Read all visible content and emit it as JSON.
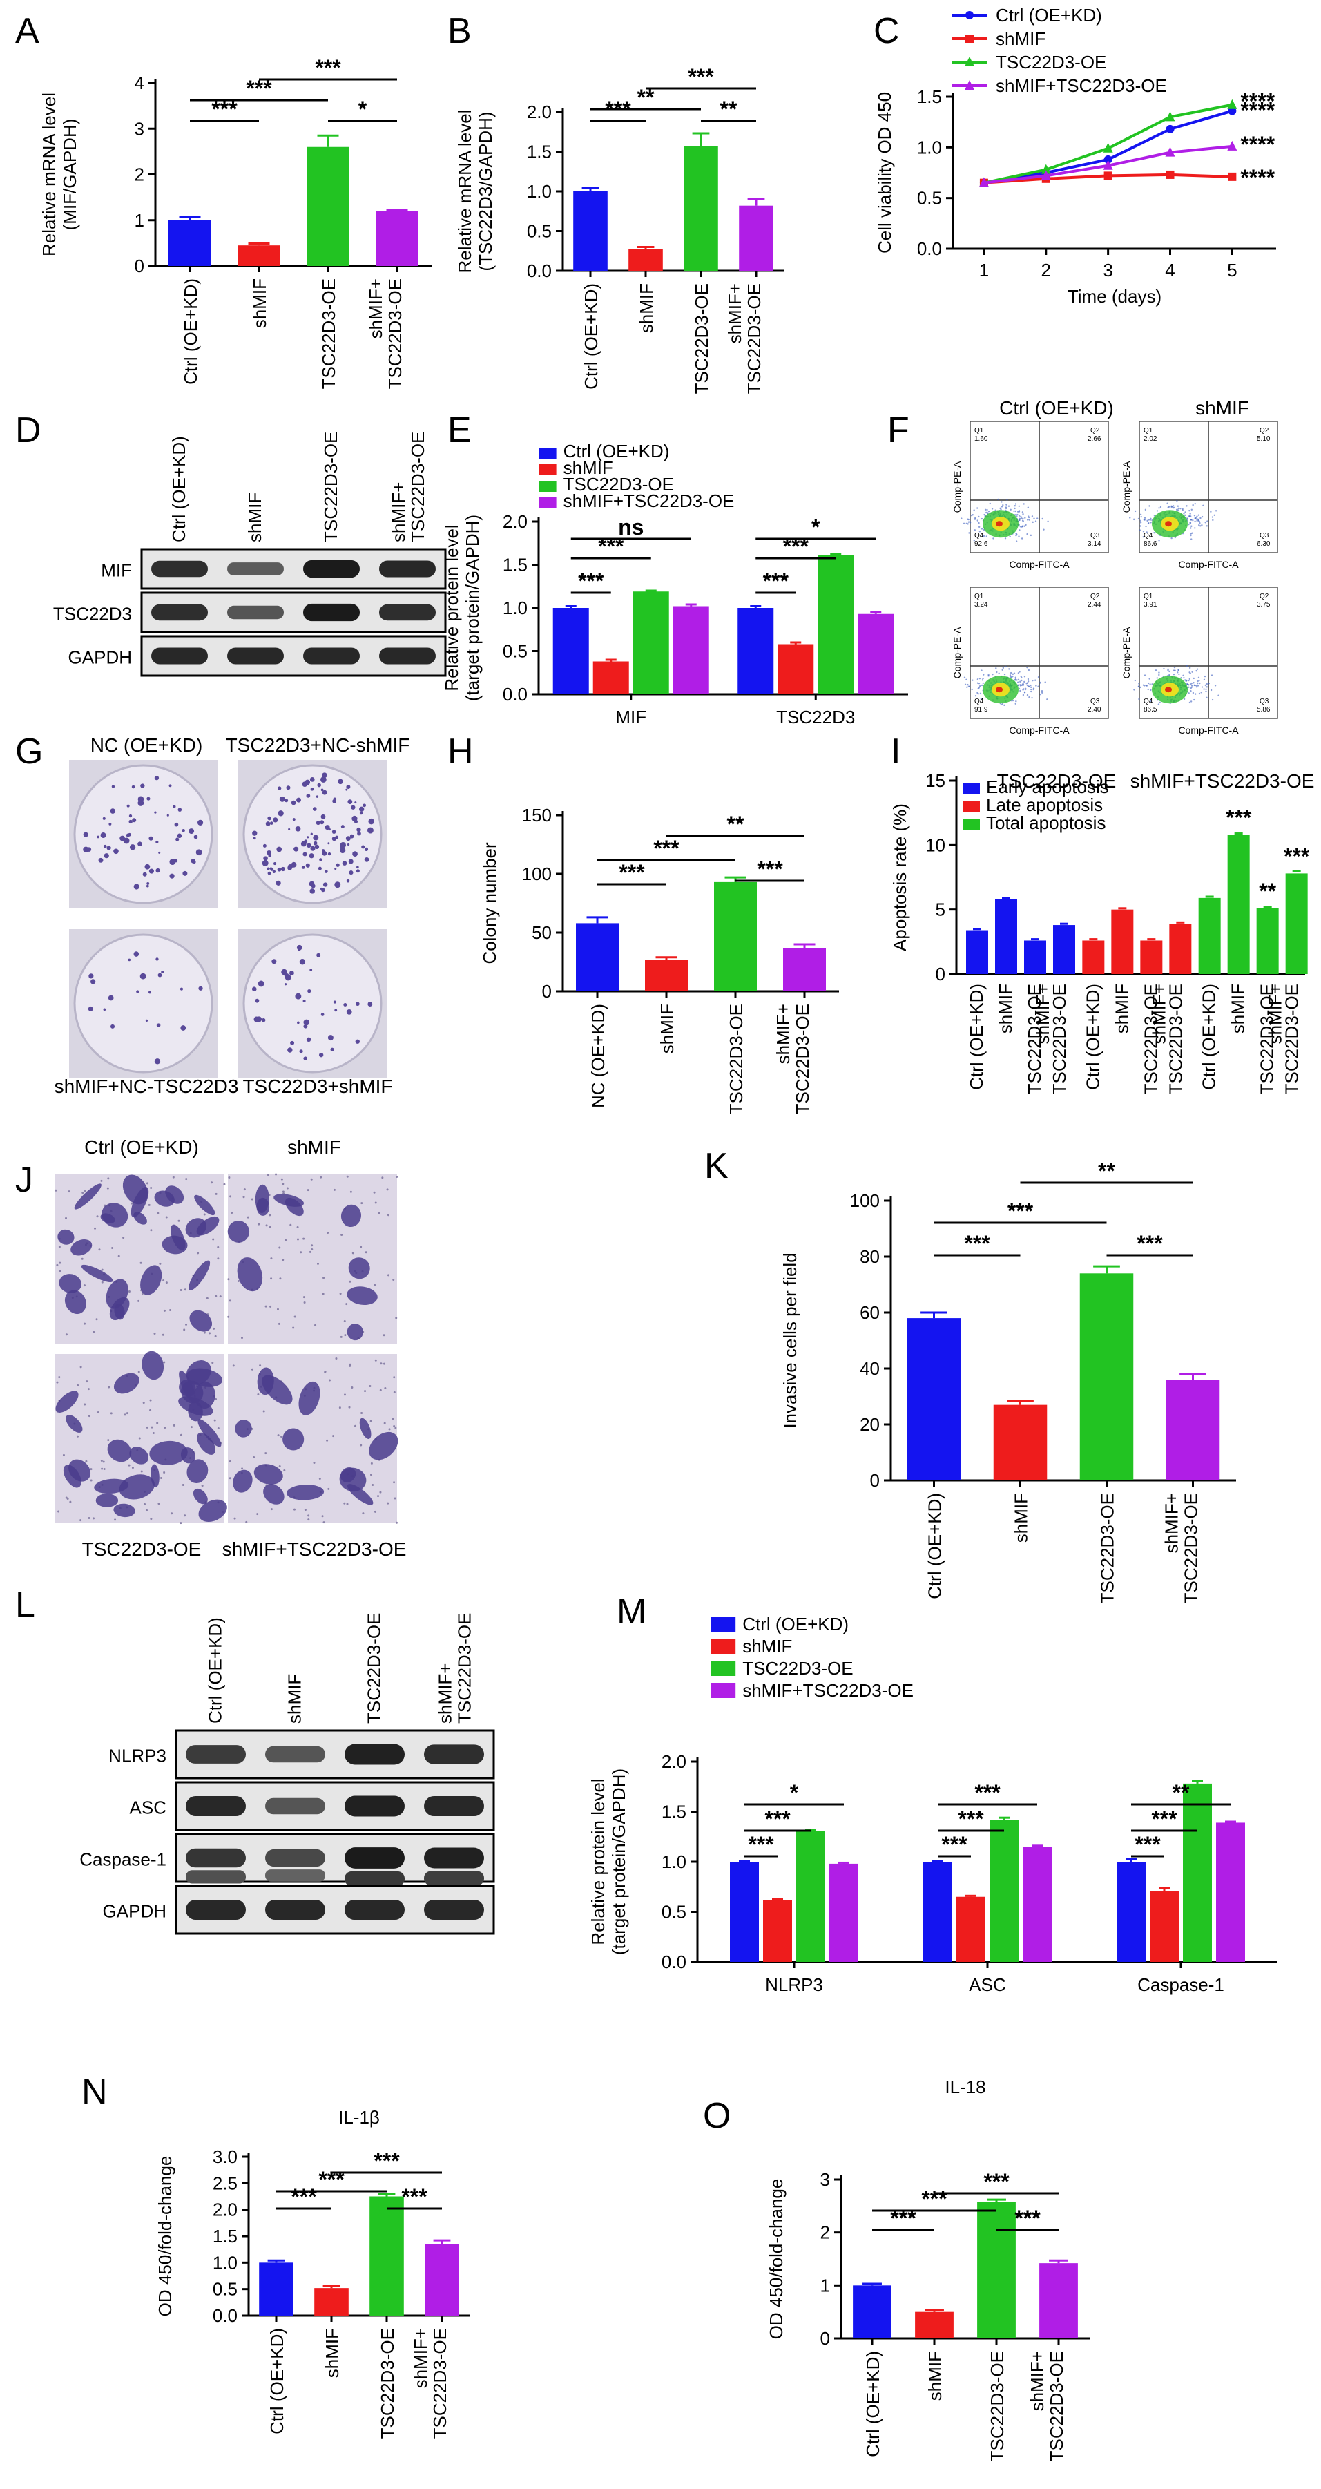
{
  "colors": {
    "blue": "#1414f0",
    "red": "#ee1c1c",
    "green": "#22c322",
    "purple": "#b01ee6"
  },
  "images": {
    "F": {
      "labels": [
        "Ctrl (OE+KD)",
        "shMIF",
        "TSC22D3-OE",
        "shMIF+TSC22D3-OE"
      ],
      "y_axis": "Comp-PE-A",
      "x_axis": "Comp-FITC-A",
      "quadrants": [
        {
          "q1": "1.60",
          "q2": "2.66",
          "q3": "3.14",
          "q4": "92.6"
        },
        {
          "q1": "2.02",
          "q2": "5.10",
          "q3": "6.30",
          "q4": "86.6"
        },
        {
          "q1": "3.24",
          "q2": "2.44",
          "q3": "2.40",
          "q4": "91.9"
        },
        {
          "q1": "3.91",
          "q2": "3.75",
          "q3": "5.86",
          "q4": "86.5"
        }
      ]
    },
    "G": {
      "labels": [
        "NC (OE+KD)",
        "TSC22D3+NC-shMIF",
        "shMIF+NC-TSC22D3",
        "TSC22D3+shMIF"
      ]
    },
    "J": {
      "labels": [
        "Ctrl (OE+KD)",
        "shMIF",
        "TSC22D3-OE",
        "shMIF+TSC22D3-OE"
      ]
    },
    "D": {
      "lanes": [
        "Ctrl (OE+KD)",
        "shMIF",
        "TSC22D3-OE",
        "shMIF+\nTSC22D3-OE"
      ],
      "rows": [
        "MIF",
        "TSC22D3",
        "GAPDH"
      ]
    },
    "L": {
      "lanes": [
        "Ctrl (OE+KD)",
        "shMIF",
        "TSC22D3-OE",
        "shMIF+\nTSC22D3-OE"
      ],
      "rows": [
        "NLRP3",
        "ASC",
        "Caspase-1",
        "GAPDH"
      ]
    }
  },
  "chart_data": [
    {
      "panel": "A",
      "type": "bar",
      "categories": [
        "Ctrl (OE+KD)",
        "shMIF",
        "TSC22D3-OE",
        "shMIF+\nTSC22D3-OE"
      ],
      "values": [
        1.0,
        0.45,
        2.6,
        1.2
      ],
      "errors": [
        0.08,
        0.04,
        0.25,
        0.02
      ],
      "ylabel": "Relative mRNA level\n(MIF/GAPDH)",
      "ylim": [
        0,
        4
      ],
      "yticks": [
        0,
        1,
        2,
        3,
        4
      ],
      "sig": [
        {
          "from": 0,
          "to": 1,
          "label": "***"
        },
        {
          "from": 0,
          "to": 2,
          "label": "***"
        },
        {
          "from": 2,
          "to": 3,
          "label": "*"
        },
        {
          "from": 1,
          "to": 3,
          "label": "***"
        }
      ]
    },
    {
      "panel": "B",
      "type": "bar",
      "categories": [
        "Ctrl (OE+KD)",
        "shMIF",
        "TSC22D3-OE",
        "shMIF+\nTSC22D3-OE"
      ],
      "values": [
        1.0,
        0.27,
        1.57,
        0.82
      ],
      "errors": [
        0.04,
        0.03,
        0.16,
        0.08
      ],
      "ylabel": "Relative mRNA level\n(TSC22D3/GAPDH)",
      "ylim": [
        0,
        2.0
      ],
      "yticks": [
        0.0,
        0.5,
        1.0,
        1.5,
        2.0
      ],
      "sig": [
        {
          "from": 0,
          "to": 1,
          "label": "***"
        },
        {
          "from": 0,
          "to": 2,
          "label": "**"
        },
        {
          "from": 2,
          "to": 3,
          "label": "**"
        },
        {
          "from": 1,
          "to": 3,
          "label": "***"
        }
      ]
    },
    {
      "panel": "C",
      "type": "line",
      "x": [
        1,
        2,
        3,
        4,
        5
      ],
      "series": [
        {
          "name": "Ctrl (OE+KD)",
          "values": [
            0.65,
            0.75,
            0.88,
            1.18,
            1.36
          ],
          "end_label": "****"
        },
        {
          "name": "shMIF",
          "values": [
            0.65,
            0.69,
            0.72,
            0.73,
            0.71
          ],
          "end_label": "****"
        },
        {
          "name": "TSC22D3-OE",
          "values": [
            0.65,
            0.78,
            0.99,
            1.3,
            1.42
          ],
          "end_label": "****"
        },
        {
          "name": "shMIF+TSC22D3-OE",
          "values": [
            0.65,
            0.72,
            0.82,
            0.95,
            1.01
          ],
          "end_label": "****"
        }
      ],
      "xlabel": "Time (days)",
      "ylabel": "Cell viability OD 450",
      "xticks": [
        1,
        2,
        3,
        4,
        5
      ],
      "ylim": [
        0,
        1.5
      ],
      "yticks": [
        0.0,
        0.5,
        1.0,
        1.5
      ]
    },
    {
      "panel": "E",
      "type": "bar",
      "groups": [
        "MIF",
        "TSC22D3"
      ],
      "series": [
        {
          "name": "Ctrl (OE+KD)",
          "values": [
            1.0,
            1.0
          ],
          "errors": [
            0.02,
            0.02
          ]
        },
        {
          "name": "shMIF",
          "values": [
            0.38,
            0.58
          ],
          "errors": [
            0.02,
            0.02
          ]
        },
        {
          "name": "TSC22D3-OE",
          "values": [
            1.19,
            1.61
          ],
          "errors": [
            0.01,
            0.01
          ]
        },
        {
          "name": "shMIF+TSC22D3-OE",
          "values": [
            1.02,
            0.93
          ],
          "errors": [
            0.02,
            0.02
          ]
        }
      ],
      "ylabel": "Relative protein level\n(target protein/GAPDH)",
      "ylim": [
        0,
        2.0
      ],
      "yticks": [
        0.0,
        0.5,
        1.0,
        1.5,
        2.0
      ],
      "sig": [
        {
          "group": 0,
          "from": 0,
          "to": 1,
          "label": "***"
        },
        {
          "group": 0,
          "from": 0,
          "to": 2,
          "label": "***"
        },
        {
          "group": 0,
          "from": 0,
          "to": 3,
          "label": "ns"
        },
        {
          "group": 1,
          "from": 0,
          "to": 1,
          "label": "***"
        },
        {
          "group": 1,
          "from": 0,
          "to": 2,
          "label": "***"
        },
        {
          "group": 1,
          "from": 0,
          "to": 3,
          "label": "*"
        }
      ]
    },
    {
      "panel": "H",
      "type": "bar",
      "categories": [
        "NC (OE+KD)",
        "shMIF",
        "TSC22D3-OE",
        "shMIF+\nTSC22D3-OE"
      ],
      "values": [
        58,
        27,
        93,
        37
      ],
      "errors": [
        5,
        2,
        4,
        3
      ],
      "ylabel": "Colony number",
      "ylim": [
        0,
        150
      ],
      "yticks": [
        0,
        50,
        100,
        150
      ],
      "sig": [
        {
          "from": 0,
          "to": 1,
          "label": "***"
        },
        {
          "from": 0,
          "to": 2,
          "label": "***"
        },
        {
          "from": 2,
          "to": 3,
          "label": "***"
        },
        {
          "from": 1,
          "to": 3,
          "label": "**"
        }
      ]
    },
    {
      "panel": "I",
      "type": "bar",
      "groups": [
        "Early apoptosis",
        "Late apoptosis",
        "Total apoptosis"
      ],
      "categories": [
        "Ctrl (OE+KD)",
        "shMIF",
        "TSC22D3-OE",
        "shMIF+\nTSC22D3-OE"
      ],
      "series": [
        {
          "name": "Early apoptosis",
          "values": [
            3.4,
            5.8,
            2.6,
            3.8
          ],
          "errors": [
            0.1,
            0.1,
            0.1,
            0.1
          ]
        },
        {
          "name": "Late apoptosis",
          "values": [
            2.6,
            5.0,
            2.6,
            3.9
          ],
          "errors": [
            0.1,
            0.1,
            0.1,
            0.1
          ]
        },
        {
          "name": "Total apoptosis",
          "values": [
            5.9,
            10.8,
            5.1,
            7.8
          ],
          "errors": [
            0.1,
            0.1,
            0.1,
            0.2
          ],
          "labels": [
            "",
            "***",
            "**",
            "***"
          ]
        }
      ],
      "ylabel": "Apoptosis rate (%)",
      "ylim": [
        0,
        15
      ],
      "yticks": [
        0,
        5,
        10,
        15
      ]
    },
    {
      "panel": "K",
      "type": "bar",
      "categories": [
        "Ctrl (OE+KD)",
        "shMIF",
        "TSC22D3-OE",
        "shMIF+\nTSC22D3-OE"
      ],
      "values": [
        58,
        27,
        74,
        36
      ],
      "errors": [
        2,
        1.5,
        2.5,
        2
      ],
      "ylabel": "Invasive cells per field",
      "ylim": [
        0,
        100
      ],
      "yticks": [
        0,
        20,
        40,
        60,
        80,
        100
      ],
      "sig": [
        {
          "from": 0,
          "to": 1,
          "label": "***"
        },
        {
          "from": 0,
          "to": 2,
          "label": "***"
        },
        {
          "from": 2,
          "to": 3,
          "label": "***"
        },
        {
          "from": 1,
          "to": 3,
          "label": "**"
        }
      ]
    },
    {
      "panel": "M",
      "type": "bar",
      "groups": [
        "NLRP3",
        "ASC",
        "Caspase-1"
      ],
      "series": [
        {
          "name": "Ctrl (OE+KD)",
          "values": [
            1.0,
            1.0,
            1.0
          ],
          "errors": [
            0.01,
            0.01,
            0.03
          ]
        },
        {
          "name": "shMIF",
          "values": [
            0.62,
            0.65,
            0.71
          ],
          "errors": [
            0.01,
            0.01,
            0.03
          ]
        },
        {
          "name": "TSC22D3-OE",
          "values": [
            1.31,
            1.42,
            1.78
          ],
          "errors": [
            0.01,
            0.02,
            0.03
          ]
        },
        {
          "name": "shMIF+TSC22D3-OE",
          "values": [
            0.98,
            1.15,
            1.39
          ],
          "errors": [
            0.01,
            0.01,
            0.01
          ]
        }
      ],
      "ylabel": "Relative protein level\n(target protein/GAPDH)",
      "ylim": [
        0,
        2.0
      ],
      "yticks": [
        0.0,
        0.5,
        1.0,
        1.5,
        2.0
      ],
      "sig": [
        {
          "group": 0,
          "from": 0,
          "to": 1,
          "label": "***"
        },
        {
          "group": 0,
          "from": 0,
          "to": 2,
          "label": "***"
        },
        {
          "group": 0,
          "from": 0,
          "to": 3,
          "label": "*"
        },
        {
          "group": 1,
          "from": 0,
          "to": 1,
          "label": "***"
        },
        {
          "group": 1,
          "from": 0,
          "to": 2,
          "label": "***"
        },
        {
          "group": 1,
          "from": 0,
          "to": 3,
          "label": "***"
        },
        {
          "group": 2,
          "from": 0,
          "to": 1,
          "label": "***"
        },
        {
          "group": 2,
          "from": 0,
          "to": 2,
          "label": "***"
        },
        {
          "group": 2,
          "from": 0,
          "to": 3,
          "label": "**"
        }
      ]
    },
    {
      "panel": "N",
      "type": "bar",
      "title": "IL-1β",
      "categories": [
        "Ctrl (OE+KD)",
        "shMIF",
        "TSC22D3-OE",
        "shMIF+\nTSC22D3-OE"
      ],
      "values": [
        1.0,
        0.52,
        2.25,
        1.35
      ],
      "errors": [
        0.04,
        0.04,
        0.05,
        0.07
      ],
      "ylabel": "OD 450/fold-change",
      "ylim": [
        0,
        3.0
      ],
      "yticks": [
        0.0,
        0.5,
        1.0,
        1.5,
        2.0,
        2.5,
        3.0
      ],
      "sig": [
        {
          "from": 0,
          "to": 1,
          "label": "***"
        },
        {
          "from": 0,
          "to": 2,
          "label": "***"
        },
        {
          "from": 2,
          "to": 3,
          "label": "***"
        },
        {
          "from": 1,
          "to": 3,
          "label": "***"
        }
      ]
    },
    {
      "panel": "O",
      "type": "bar",
      "title": "IL-18",
      "categories": [
        "Ctrl (OE+KD)",
        "shMIF",
        "TSC22D3-OE",
        "shMIF+\nTSC22D3-OE"
      ],
      "values": [
        1.0,
        0.5,
        2.58,
        1.42
      ],
      "errors": [
        0.03,
        0.03,
        0.04,
        0.05
      ],
      "ylabel": "OD 450/fold-change",
      "ylim": [
        0,
        3
      ],
      "yticks": [
        0,
        1,
        2,
        3
      ],
      "sig": [
        {
          "from": 0,
          "to": 1,
          "label": "***"
        },
        {
          "from": 0,
          "to": 2,
          "label": "***"
        },
        {
          "from": 2,
          "to": 3,
          "label": "***"
        },
        {
          "from": 1,
          "to": 3,
          "label": "***"
        }
      ]
    }
  ]
}
